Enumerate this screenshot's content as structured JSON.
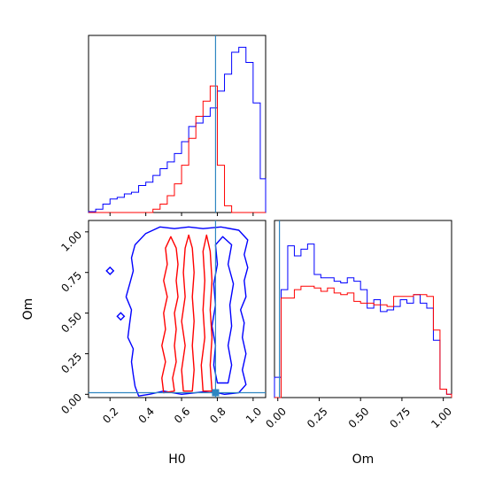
{
  "chart_data": {
    "type": "corner",
    "parameters": [
      "H0",
      "Om"
    ],
    "truth": {
      "H0": 0.79,
      "Om": 0.01
    },
    "colors": {
      "series_blue": "#0000ff",
      "series_red": "#ff0000",
      "truth": "#2e86c1",
      "frame": "#000000"
    },
    "panels": {
      "h0_hist": {
        "type": "histogram",
        "xlim": [
          0.08,
          1.07
        ],
        "ylim": [
          0,
          1.05
        ],
        "edges": [
          0.08,
          0.12,
          0.16,
          0.2,
          0.24,
          0.28,
          0.32,
          0.36,
          0.4,
          0.44,
          0.48,
          0.52,
          0.56,
          0.6,
          0.64,
          0.68,
          0.72,
          0.76,
          0.8,
          0.84,
          0.88,
          0.92,
          0.96,
          1.0,
          1.04,
          1.07
        ],
        "series": [
          {
            "color": "blue",
            "values": [
              0.005,
              0.02,
              0.05,
              0.08,
              0.09,
              0.11,
              0.12,
              0.16,
              0.18,
              0.22,
              0.26,
              0.3,
              0.35,
              0.42,
              0.51,
              0.53,
              0.57,
              0.62,
              0.72,
              0.82,
              0.95,
              0.98,
              0.89,
              0.65,
              0.2
            ]
          },
          {
            "color": "red",
            "values": [
              0,
              0,
              0,
              0,
              0,
              0,
              0,
              0,
              0,
              0.02,
              0.05,
              0.1,
              0.17,
              0.28,
              0.44,
              0.57,
              0.66,
              0.75,
              0.28,
              0.04,
              0,
              0,
              0,
              0,
              0
            ]
          }
        ],
        "ticks": [
          0.2,
          0.4,
          0.6,
          0.8,
          1.0
        ]
      },
      "om_hist": {
        "type": "histogram",
        "xlim": [
          -0.02,
          1.05
        ],
        "ylim": [
          0,
          1.05
        ],
        "edges": [
          -0.02,
          0.02,
          0.06,
          0.1,
          0.14,
          0.18,
          0.22,
          0.26,
          0.3,
          0.34,
          0.38,
          0.42,
          0.46,
          0.5,
          0.54,
          0.58,
          0.62,
          0.66,
          0.7,
          0.74,
          0.78,
          0.82,
          0.86,
          0.9,
          0.94,
          0.98,
          1.02,
          1.05
        ],
        "series": [
          {
            "color": "blue",
            "values": [
              0.12,
              0.64,
              0.9,
              0.84,
              0.88,
              0.91,
              0.73,
              0.71,
              0.71,
              0.69,
              0.68,
              0.71,
              0.69,
              0.64,
              0.53,
              0.58,
              0.51,
              0.52,
              0.54,
              0.58,
              0.56,
              0.61,
              0.56,
              0.53,
              0.34,
              0.05,
              0.02
            ]
          },
          {
            "color": "red",
            "values": [
              0,
              0.59,
              0.59,
              0.64,
              0.66,
              0.66,
              0.65,
              0.63,
              0.65,
              0.62,
              0.61,
              0.62,
              0.57,
              0.56,
              0.56,
              0.55,
              0.55,
              0.54,
              0.6,
              0.6,
              0.6,
              0.61,
              0.61,
              0.6,
              0.4,
              0.05,
              0.02
            ]
          }
        ],
        "ticks": [
          0.0,
          0.25,
          0.5,
          0.75,
          1.0
        ]
      },
      "joint": {
        "type": "contour",
        "xlim": [
          0.08,
          1.07
        ],
        "ylim": [
          -0.02,
          1.07
        ],
        "blue_outer": [
          [
            0.36,
            -0.01
          ],
          [
            0.34,
            0.05
          ],
          [
            0.33,
            0.12
          ],
          [
            0.32,
            0.2
          ],
          [
            0.33,
            0.28
          ],
          [
            0.3,
            0.35
          ],
          [
            0.31,
            0.44
          ],
          [
            0.32,
            0.52
          ],
          [
            0.29,
            0.6
          ],
          [
            0.31,
            0.68
          ],
          [
            0.33,
            0.76
          ],
          [
            0.32,
            0.84
          ],
          [
            0.34,
            0.92
          ],
          [
            0.4,
            0.99
          ],
          [
            0.48,
            1.03
          ],
          [
            0.56,
            1.02
          ],
          [
            0.64,
            1.03
          ],
          [
            0.72,
            1.02
          ],
          [
            0.82,
            1.03
          ],
          [
            0.92,
            1.01
          ],
          [
            0.97,
            0.95
          ],
          [
            0.95,
            0.86
          ],
          [
            0.97,
            0.78
          ],
          [
            0.95,
            0.7
          ],
          [
            0.96,
            0.6
          ],
          [
            0.93,
            0.52
          ],
          [
            0.95,
            0.44
          ],
          [
            0.94,
            0.35
          ],
          [
            0.96,
            0.25
          ],
          [
            0.94,
            0.15
          ],
          [
            0.96,
            0.06
          ],
          [
            0.92,
            0.01
          ],
          [
            0.84,
            0.0
          ],
          [
            0.76,
            0.02
          ],
          [
            0.68,
            0.01
          ],
          [
            0.6,
            0.0
          ],
          [
            0.5,
            0.02
          ],
          [
            0.42,
            0.0
          ]
        ],
        "blue_inner": [
          [
            0.8,
            0.07
          ],
          [
            0.78,
            0.18
          ],
          [
            0.79,
            0.3
          ],
          [
            0.77,
            0.42
          ],
          [
            0.79,
            0.55
          ],
          [
            0.78,
            0.68
          ],
          [
            0.8,
            0.8
          ],
          [
            0.79,
            0.92
          ],
          [
            0.83,
            0.97
          ],
          [
            0.88,
            0.92
          ],
          [
            0.86,
            0.8
          ],
          [
            0.89,
            0.68
          ],
          [
            0.87,
            0.55
          ],
          [
            0.88,
            0.42
          ],
          [
            0.86,
            0.3
          ],
          [
            0.88,
            0.18
          ],
          [
            0.86,
            0.07
          ]
        ],
        "red_outer": [
          [
            0.5,
            0.01
          ],
          [
            0.49,
            0.1
          ],
          [
            0.51,
            0.2
          ],
          [
            0.49,
            0.3
          ],
          [
            0.51,
            0.4
          ],
          [
            0.5,
            0.5
          ],
          [
            0.52,
            0.6
          ],
          [
            0.5,
            0.7
          ],
          [
            0.52,
            0.8
          ],
          [
            0.51,
            0.9
          ],
          [
            0.54,
            0.97
          ],
          [
            0.57,
            0.9
          ],
          [
            0.58,
            0.8
          ],
          [
            0.57,
            0.7
          ],
          [
            0.58,
            0.6
          ],
          [
            0.56,
            0.5
          ],
          [
            0.57,
            0.4
          ],
          [
            0.56,
            0.3
          ],
          [
            0.57,
            0.2
          ],
          [
            0.55,
            0.1
          ],
          [
            0.56,
            0.02
          ]
        ],
        "red_mid": [
          [
            0.61,
            0.02
          ],
          [
            0.6,
            0.15
          ],
          [
            0.62,
            0.3
          ],
          [
            0.6,
            0.45
          ],
          [
            0.62,
            0.6
          ],
          [
            0.61,
            0.75
          ],
          [
            0.62,
            0.9
          ],
          [
            0.64,
            0.98
          ],
          [
            0.66,
            0.9
          ],
          [
            0.67,
            0.75
          ],
          [
            0.66,
            0.6
          ],
          [
            0.67,
            0.45
          ],
          [
            0.66,
            0.3
          ],
          [
            0.67,
            0.15
          ],
          [
            0.66,
            0.02
          ]
        ],
        "red_inner": [
          [
            0.72,
            0.02
          ],
          [
            0.71,
            0.18
          ],
          [
            0.73,
            0.35
          ],
          [
            0.72,
            0.52
          ],
          [
            0.73,
            0.7
          ],
          [
            0.72,
            0.88
          ],
          [
            0.74,
            0.98
          ],
          [
            0.76,
            0.88
          ],
          [
            0.77,
            0.7
          ],
          [
            0.76,
            0.52
          ],
          [
            0.77,
            0.35
          ],
          [
            0.76,
            0.18
          ],
          [
            0.77,
            0.02
          ]
        ],
        "xticks": [
          0.2,
          0.4,
          0.6,
          0.8,
          1.0
        ],
        "yticks": [
          0.0,
          0.25,
          0.5,
          0.75,
          1.0
        ]
      }
    },
    "labels": {
      "xlabel_h0": "H0",
      "xlabel_om": "Om",
      "ylabel_om": "Om"
    },
    "tick_labels": {
      "h0": [
        "0.2",
        "0.4",
        "0.6",
        "0.8",
        "1.0"
      ],
      "om_x": [
        "0.00",
        "0.25",
        "0.50",
        "0.75",
        "1.00"
      ],
      "om_y": [
        "0.00",
        "0.25",
        "0.50",
        "0.75",
        "1.00"
      ]
    }
  }
}
